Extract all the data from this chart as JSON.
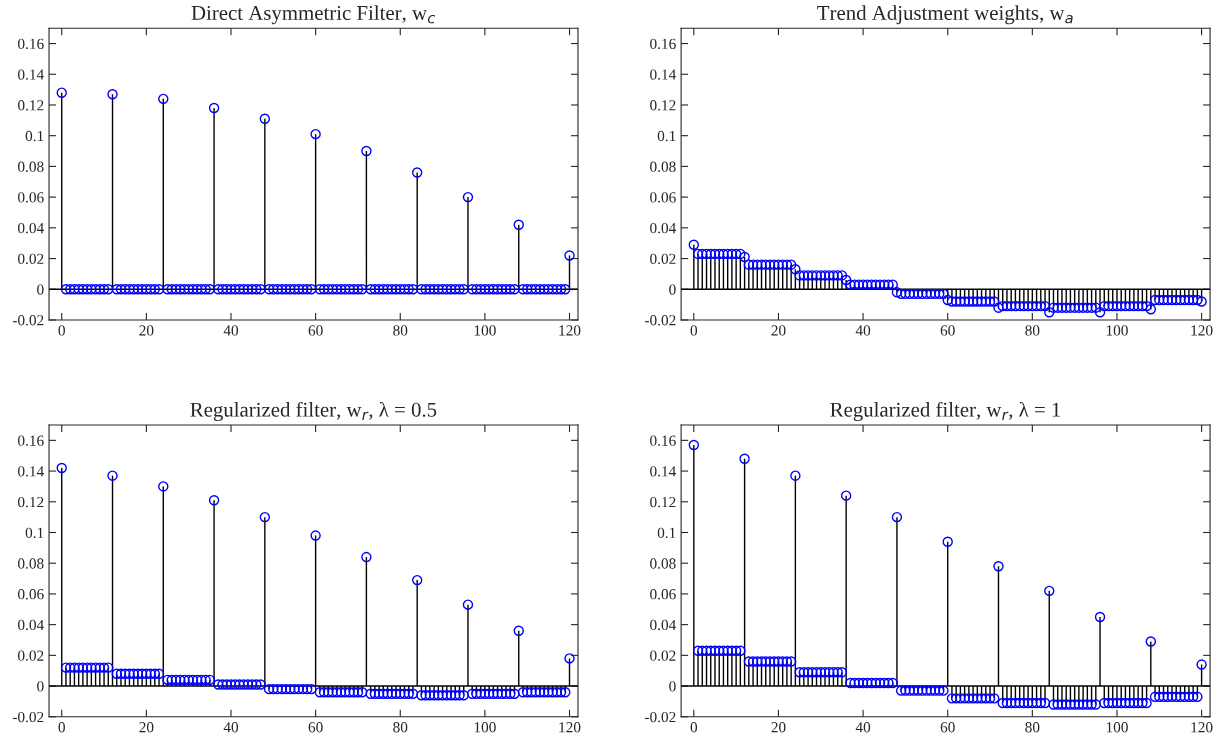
{
  "chart_data": [
    {
      "type": "lollipop",
      "title": "Direct Asymmetric Filter, w$_{c}$",
      "marker": "circle",
      "xlim": [
        -3,
        122
      ],
      "xticks": [
        0,
        20,
        40,
        60,
        80,
        100,
        120
      ],
      "ylim": [
        -0.02,
        0.17
      ],
      "yticks": [
        -0.02,
        0,
        0.02,
        0.04,
        0.06,
        0.08,
        0.1,
        0.12,
        0.14,
        0.16
      ],
      "x": [
        0,
        1,
        2,
        3,
        4,
        5,
        6,
        7,
        8,
        9,
        10,
        11,
        12,
        13,
        14,
        15,
        16,
        17,
        18,
        19,
        20,
        21,
        22,
        23,
        24,
        25,
        26,
        27,
        28,
        29,
        30,
        31,
        32,
        33,
        34,
        35,
        36,
        37,
        38,
        39,
        40,
        41,
        42,
        43,
        44,
        45,
        46,
        47,
        48,
        49,
        50,
        51,
        52,
        53,
        54,
        55,
        56,
        57,
        58,
        59,
        60,
        61,
        62,
        63,
        64,
        65,
        66,
        67,
        68,
        69,
        70,
        71,
        72,
        73,
        74,
        75,
        76,
        77,
        78,
        79,
        80,
        81,
        82,
        83,
        84,
        85,
        86,
        87,
        88,
        89,
        90,
        91,
        92,
        93,
        94,
        95,
        96,
        97,
        98,
        99,
        100,
        101,
        102,
        103,
        104,
        105,
        106,
        107,
        108,
        109,
        110,
        111,
        112,
        113,
        114,
        115,
        116,
        117,
        118,
        119,
        120
      ],
      "series": [
        {
          "color": "#0000ff",
          "values": [
            0.128,
            0,
            0,
            0,
            0,
            0,
            0,
            0,
            0,
            0,
            0,
            0,
            0.127,
            0,
            0,
            0,
            0,
            0,
            0,
            0,
            0,
            0,
            0,
            0,
            0.124,
            0,
            0,
            0,
            0,
            0,
            0,
            0,
            0,
            0,
            0,
            0,
            0.118,
            0,
            0,
            0,
            0,
            0,
            0,
            0,
            0,
            0,
            0,
            0,
            0.111,
            0,
            0,
            0,
            0,
            0,
            0,
            0,
            0,
            0,
            0,
            0,
            0.101,
            0,
            0,
            0,
            0,
            0,
            0,
            0,
            0,
            0,
            0,
            0,
            0.09,
            0,
            0,
            0,
            0,
            0,
            0,
            0,
            0,
            0,
            0,
            0,
            0.076,
            0,
            0,
            0,
            0,
            0,
            0,
            0,
            0,
            0,
            0,
            0,
            0.06,
            0,
            0,
            0,
            0,
            0,
            0,
            0,
            0,
            0,
            0,
            0,
            0.042,
            0,
            0,
            0,
            0,
            0,
            0,
            0,
            0,
            0,
            0,
            0,
            0.022
          ]
        }
      ]
    },
    {
      "type": "lollipop",
      "title": "Trend Adjustment weights, w$_{a}$",
      "marker": "circle",
      "xlim": [
        -3,
        122
      ],
      "xticks": [
        0,
        20,
        40,
        60,
        80,
        100,
        120
      ],
      "ylim": [
        -0.02,
        0.17
      ],
      "yticks": [
        -0.02,
        0,
        0.02,
        0.04,
        0.06,
        0.08,
        0.1,
        0.12,
        0.14,
        0.16
      ],
      "x": [
        0,
        1,
        2,
        3,
        4,
        5,
        6,
        7,
        8,
        9,
        10,
        11,
        12,
        13,
        14,
        15,
        16,
        17,
        18,
        19,
        20,
        21,
        22,
        23,
        24,
        25,
        26,
        27,
        28,
        29,
        30,
        31,
        32,
        33,
        34,
        35,
        36,
        37,
        38,
        39,
        40,
        41,
        42,
        43,
        44,
        45,
        46,
        47,
        48,
        49,
        50,
        51,
        52,
        53,
        54,
        55,
        56,
        57,
        58,
        59,
        60,
        61,
        62,
        63,
        64,
        65,
        66,
        67,
        68,
        69,
        70,
        71,
        72,
        73,
        74,
        75,
        76,
        77,
        78,
        79,
        80,
        81,
        82,
        83,
        84,
        85,
        86,
        87,
        88,
        89,
        90,
        91,
        92,
        93,
        94,
        95,
        96,
        97,
        98,
        99,
        100,
        101,
        102,
        103,
        104,
        105,
        106,
        107,
        108,
        109,
        110,
        111,
        112,
        113,
        114,
        115,
        116,
        117,
        118,
        119,
        120
      ],
      "series": [
        {
          "color": "#0000ff",
          "values": [
            0.029,
            0.023,
            0.023,
            0.023,
            0.023,
            0.023,
            0.023,
            0.023,
            0.023,
            0.023,
            0.023,
            0.023,
            0.021,
            0.016,
            0.016,
            0.016,
            0.016,
            0.016,
            0.016,
            0.016,
            0.016,
            0.016,
            0.016,
            0.016,
            0.013,
            0.009,
            0.009,
            0.009,
            0.009,
            0.009,
            0.009,
            0.009,
            0.009,
            0.009,
            0.009,
            0.009,
            0.006,
            0.003,
            0.003,
            0.003,
            0.003,
            0.003,
            0.003,
            0.003,
            0.003,
            0.003,
            0.003,
            0.003,
            -0.002,
            -0.003,
            -0.003,
            -0.003,
            -0.003,
            -0.003,
            -0.003,
            -0.003,
            -0.003,
            -0.003,
            -0.003,
            -0.003,
            -0.007,
            -0.008,
            -0.008,
            -0.008,
            -0.008,
            -0.008,
            -0.008,
            -0.008,
            -0.008,
            -0.008,
            -0.008,
            -0.008,
            -0.012,
            -0.011,
            -0.011,
            -0.011,
            -0.011,
            -0.011,
            -0.011,
            -0.011,
            -0.011,
            -0.011,
            -0.011,
            -0.011,
            -0.015,
            -0.012,
            -0.012,
            -0.012,
            -0.012,
            -0.012,
            -0.012,
            -0.012,
            -0.012,
            -0.012,
            -0.012,
            -0.012,
            -0.015,
            -0.011,
            -0.011,
            -0.011,
            -0.011,
            -0.011,
            -0.011,
            -0.011,
            -0.011,
            -0.011,
            -0.011,
            -0.011,
            -0.013,
            -0.007,
            -0.007,
            -0.007,
            -0.007,
            -0.007,
            -0.007,
            -0.007,
            -0.007,
            -0.007,
            -0.007,
            -0.007,
            -0.008
          ]
        }
      ]
    },
    {
      "type": "lollipop",
      "title": "Regularized filter, w$_{r}$, λ = 0.5",
      "marker": "circle",
      "xlim": [
        -3,
        122
      ],
      "xticks": [
        0,
        20,
        40,
        60,
        80,
        100,
        120
      ],
      "ylim": [
        -0.02,
        0.17
      ],
      "yticks": [
        -0.02,
        0,
        0.02,
        0.04,
        0.06,
        0.08,
        0.1,
        0.12,
        0.14,
        0.16
      ],
      "x": [
        0,
        1,
        2,
        3,
        4,
        5,
        6,
        7,
        8,
        9,
        10,
        11,
        12,
        13,
        14,
        15,
        16,
        17,
        18,
        19,
        20,
        21,
        22,
        23,
        24,
        25,
        26,
        27,
        28,
        29,
        30,
        31,
        32,
        33,
        34,
        35,
        36,
        37,
        38,
        39,
        40,
        41,
        42,
        43,
        44,
        45,
        46,
        47,
        48,
        49,
        50,
        51,
        52,
        53,
        54,
        55,
        56,
        57,
        58,
        59,
        60,
        61,
        62,
        63,
        64,
        65,
        66,
        67,
        68,
        69,
        70,
        71,
        72,
        73,
        74,
        75,
        76,
        77,
        78,
        79,
        80,
        81,
        82,
        83,
        84,
        85,
        86,
        87,
        88,
        89,
        90,
        91,
        92,
        93,
        94,
        95,
        96,
        97,
        98,
        99,
        100,
        101,
        102,
        103,
        104,
        105,
        106,
        107,
        108,
        109,
        110,
        111,
        112,
        113,
        114,
        115,
        116,
        117,
        118,
        119,
        120
      ],
      "series": [
        {
          "color": "#0000ff",
          "values": [
            0.142,
            0.012,
            0.012,
            0.012,
            0.012,
            0.012,
            0.012,
            0.012,
            0.012,
            0.012,
            0.012,
            0.012,
            0.137,
            0.008,
            0.008,
            0.008,
            0.008,
            0.008,
            0.008,
            0.008,
            0.008,
            0.008,
            0.008,
            0.008,
            0.13,
            0.004,
            0.004,
            0.004,
            0.004,
            0.004,
            0.004,
            0.004,
            0.004,
            0.004,
            0.004,
            0.004,
            0.121,
            0.001,
            0.001,
            0.001,
            0.001,
            0.001,
            0.001,
            0.001,
            0.001,
            0.001,
            0.001,
            0.001,
            0.11,
            -0.002,
            -0.002,
            -0.002,
            -0.002,
            -0.002,
            -0.002,
            -0.002,
            -0.002,
            -0.002,
            -0.002,
            -0.002,
            0.098,
            -0.004,
            -0.004,
            -0.004,
            -0.004,
            -0.004,
            -0.004,
            -0.004,
            -0.004,
            -0.004,
            -0.004,
            -0.004,
            0.084,
            -0.005,
            -0.005,
            -0.005,
            -0.005,
            -0.005,
            -0.005,
            -0.005,
            -0.005,
            -0.005,
            -0.005,
            -0.005,
            0.069,
            -0.006,
            -0.006,
            -0.006,
            -0.006,
            -0.006,
            -0.006,
            -0.006,
            -0.006,
            -0.006,
            -0.006,
            -0.006,
            0.053,
            -0.005,
            -0.005,
            -0.005,
            -0.005,
            -0.005,
            -0.005,
            -0.005,
            -0.005,
            -0.005,
            -0.005,
            -0.005,
            0.036,
            -0.004,
            -0.004,
            -0.004,
            -0.004,
            -0.004,
            -0.004,
            -0.004,
            -0.004,
            -0.004,
            -0.004,
            -0.004,
            0.018
          ]
        }
      ]
    },
    {
      "type": "lollipop",
      "title": "Regularized filter, w$_{r}$, λ = 1",
      "marker": "circle",
      "xlim": [
        -3,
        122
      ],
      "xticks": [
        0,
        20,
        40,
        60,
        80,
        100,
        120
      ],
      "ylim": [
        -0.02,
        0.17
      ],
      "yticks": [
        -0.02,
        0,
        0.02,
        0.04,
        0.06,
        0.08,
        0.1,
        0.12,
        0.14,
        0.16
      ],
      "x": [
        0,
        1,
        2,
        3,
        4,
        5,
        6,
        7,
        8,
        9,
        10,
        11,
        12,
        13,
        14,
        15,
        16,
        17,
        18,
        19,
        20,
        21,
        22,
        23,
        24,
        25,
        26,
        27,
        28,
        29,
        30,
        31,
        32,
        33,
        34,
        35,
        36,
        37,
        38,
        39,
        40,
        41,
        42,
        43,
        44,
        45,
        46,
        47,
        48,
        49,
        50,
        51,
        52,
        53,
        54,
        55,
        56,
        57,
        58,
        59,
        60,
        61,
        62,
        63,
        64,
        65,
        66,
        67,
        68,
        69,
        70,
        71,
        72,
        73,
        74,
        75,
        76,
        77,
        78,
        79,
        80,
        81,
        82,
        83,
        84,
        85,
        86,
        87,
        88,
        89,
        90,
        91,
        92,
        93,
        94,
        95,
        96,
        97,
        98,
        99,
        100,
        101,
        102,
        103,
        104,
        105,
        106,
        107,
        108,
        109,
        110,
        111,
        112,
        113,
        114,
        115,
        116,
        117,
        118,
        119,
        120
      ],
      "series": [
        {
          "color": "#0000ff",
          "values": [
            0.157,
            0.023,
            0.023,
            0.023,
            0.023,
            0.023,
            0.023,
            0.023,
            0.023,
            0.023,
            0.023,
            0.023,
            0.148,
            0.016,
            0.016,
            0.016,
            0.016,
            0.016,
            0.016,
            0.016,
            0.016,
            0.016,
            0.016,
            0.016,
            0.137,
            0.009,
            0.009,
            0.009,
            0.009,
            0.009,
            0.009,
            0.009,
            0.009,
            0.009,
            0.009,
            0.009,
            0.124,
            0.002,
            0.002,
            0.002,
            0.002,
            0.002,
            0.002,
            0.002,
            0.002,
            0.002,
            0.002,
            0.002,
            0.11,
            -0.003,
            -0.003,
            -0.003,
            -0.003,
            -0.003,
            -0.003,
            -0.003,
            -0.003,
            -0.003,
            -0.003,
            -0.003,
            0.094,
            -0.008,
            -0.008,
            -0.008,
            -0.008,
            -0.008,
            -0.008,
            -0.008,
            -0.008,
            -0.008,
            -0.008,
            -0.008,
            0.078,
            -0.011,
            -0.011,
            -0.011,
            -0.011,
            -0.011,
            -0.011,
            -0.011,
            -0.011,
            -0.011,
            -0.011,
            -0.011,
            0.062,
            -0.012,
            -0.012,
            -0.012,
            -0.012,
            -0.012,
            -0.012,
            -0.012,
            -0.012,
            -0.012,
            -0.012,
            -0.012,
            0.045,
            -0.011,
            -0.011,
            -0.011,
            -0.011,
            -0.011,
            -0.011,
            -0.011,
            -0.011,
            -0.011,
            -0.011,
            -0.011,
            0.029,
            -0.007,
            -0.007,
            -0.007,
            -0.007,
            -0.007,
            -0.007,
            -0.007,
            -0.007,
            -0.007,
            -0.007,
            -0.007,
            0.014
          ]
        }
      ]
    }
  ]
}
